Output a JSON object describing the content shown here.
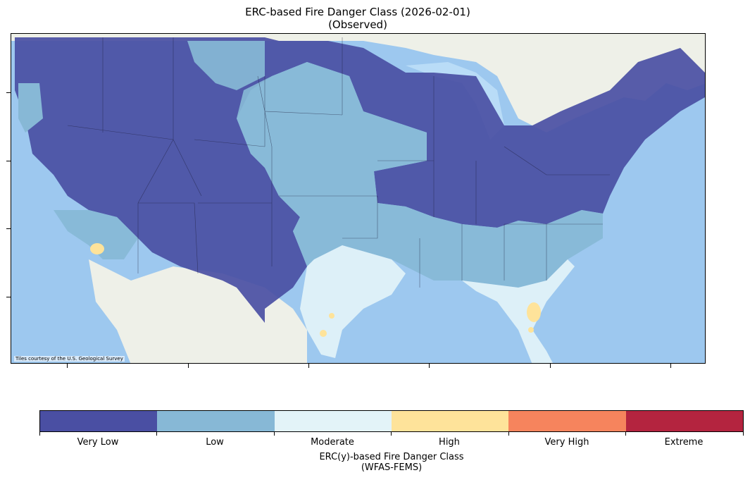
{
  "title": {
    "line1": "ERC-based Fire Danger Class (2026-02-01)",
    "line2": "(Observed)"
  },
  "map": {
    "attribution": "Tiles courtesy of the U.S. Geological Survey",
    "basemap_colors": {
      "ocean": "#9dc8ef",
      "land": "#eef0e8",
      "lakes": "#b9dcf7"
    },
    "region_classes": [
      {
        "region": "west-northwest",
        "class": "Very Low"
      },
      {
        "region": "northern-plains-strip",
        "class": "Low"
      },
      {
        "region": "central-plains",
        "class": "Low"
      },
      {
        "region": "great-lakes-northeast",
        "class": "Very Low"
      },
      {
        "region": "ohio-valley-mid-atlantic",
        "class": "Very Low"
      },
      {
        "region": "southeast",
        "class": "Low"
      },
      {
        "region": "texas-gulf-coast",
        "class": "Moderate"
      },
      {
        "region": "florida",
        "class": "Moderate"
      },
      {
        "region": "southern-california",
        "class": "Low"
      },
      {
        "region": "los-angeles-hotspot",
        "class": "High"
      },
      {
        "region": "central-florida-hotspot",
        "class": "High"
      },
      {
        "region": "south-texas-hotspots",
        "class": "High"
      }
    ]
  },
  "colorbar": {
    "classes": [
      {
        "label": "Very Low",
        "color": "#4a4fa3"
      },
      {
        "label": "Low",
        "color": "#87b8d6"
      },
      {
        "label": "Moderate",
        "color": "#e3f3f8"
      },
      {
        "label": "High",
        "color": "#fee39a"
      },
      {
        "label": "Very High",
        "color": "#f6845d"
      },
      {
        "label": "Extreme",
        "color": "#b4243f"
      }
    ],
    "title_line1": "ERC(y)-based Fire Danger Class",
    "title_line2": "(WFAS-FEMS)"
  }
}
